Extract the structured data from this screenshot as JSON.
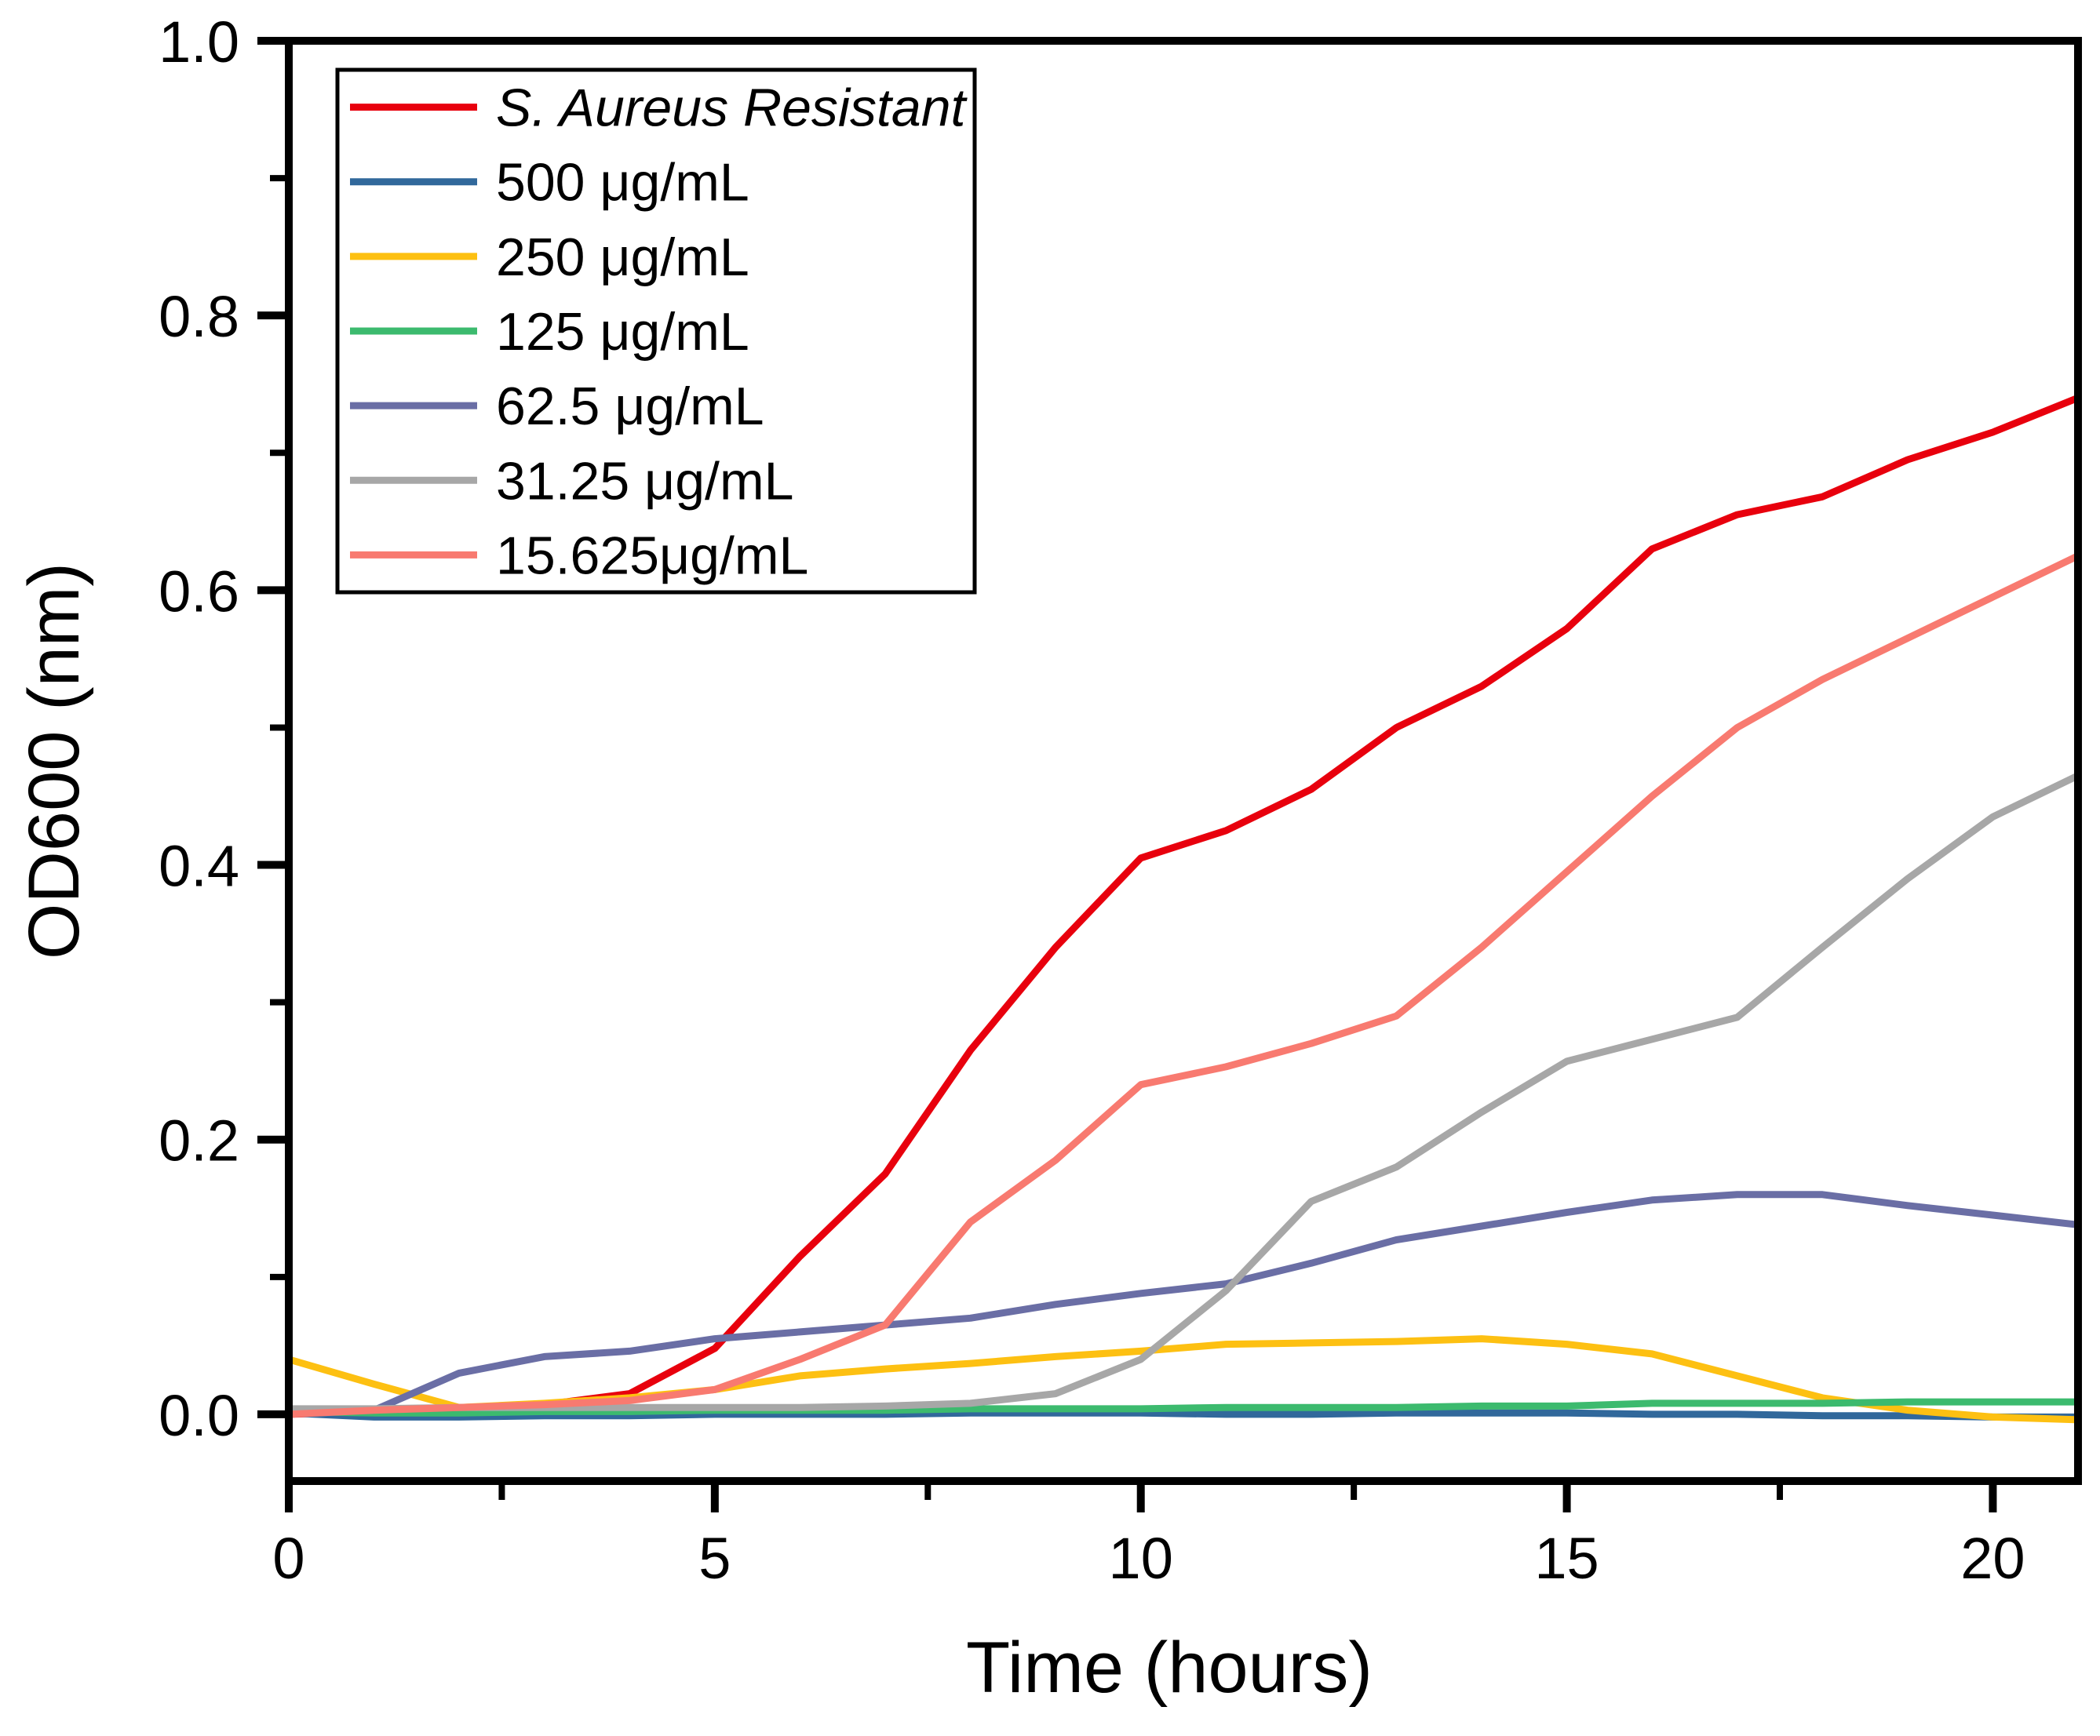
{
  "figure": {
    "background": "#ffffff",
    "text_color": "#000000",
    "axis_color": "#000000"
  },
  "chart_data": {
    "type": "line",
    "title": "",
    "xlabel": "Time (hours)",
    "ylabel": "OD600 (nm)",
    "xlim": [
      0,
      21
    ],
    "ylim": [
      -0.0486,
      1.0
    ],
    "grid": false,
    "legend_position": "upper-left-inside",
    "x_ticks_major": [
      0,
      5,
      10,
      15,
      20
    ],
    "x_tick_labels": [
      "0",
      "5",
      "10",
      "15",
      "20"
    ],
    "x_ticks_minor": [
      2.5,
      7.5,
      12.5,
      17.5
    ],
    "y_ticks_major": [
      0.0,
      0.2,
      0.4,
      0.6,
      0.8,
      1.0
    ],
    "y_tick_labels": [
      "0.0",
      "0.2",
      "0.4",
      "0.6",
      "0.8",
      "1.0"
    ],
    "y_ticks_minor": [
      0.1,
      0.3,
      0.5,
      0.7,
      0.9
    ],
    "x": [
      0,
      1,
      2,
      3,
      4,
      5,
      6,
      7,
      8,
      9,
      10,
      11,
      12,
      13,
      14,
      15,
      16,
      17,
      18,
      19,
      20,
      21
    ],
    "series": [
      {
        "name": "S. Aureus Resistant",
        "color": "#e8000d",
        "italic": true,
        "values": [
          0.0,
          0.002,
          0.004,
          0.007,
          0.015,
          0.048,
          0.115,
          0.175,
          0.265,
          0.34,
          0.405,
          0.425,
          0.455,
          0.5,
          0.53,
          0.572,
          0.63,
          0.655,
          0.668,
          0.695,
          0.715,
          0.74
        ]
      },
      {
        "name": "500 μg/mL",
        "color": "#31689b",
        "italic": false,
        "values": [
          0.001,
          -0.002,
          -0.002,
          -0.001,
          -0.001,
          0.0,
          0.0,
          0.0,
          0.001,
          0.001,
          0.001,
          0.0,
          0.0,
          0.001,
          0.001,
          0.001,
          0.0,
          0.0,
          -0.001,
          -0.001,
          -0.002,
          -0.002
        ]
      },
      {
        "name": "250 μg/mL",
        "color": "#fdc012",
        "italic": false,
        "values": [
          0.04,
          0.022,
          0.005,
          0.008,
          0.012,
          0.018,
          0.028,
          0.033,
          0.037,
          0.042,
          0.046,
          0.051,
          0.052,
          0.053,
          0.055,
          0.051,
          0.044,
          0.028,
          0.012,
          0.003,
          -0.002,
          -0.004
        ]
      },
      {
        "name": "125 μg/mL",
        "color": "#3cba6e",
        "italic": false,
        "values": [
          0.002,
          0.001,
          0.001,
          0.002,
          0.002,
          0.003,
          0.003,
          0.003,
          0.004,
          0.004,
          0.004,
          0.005,
          0.005,
          0.005,
          0.006,
          0.006,
          0.008,
          0.008,
          0.008,
          0.009,
          0.009,
          0.009
        ]
      },
      {
        "name": "62.5 μg/mL",
        "color": "#6a6ea5",
        "italic": false,
        "values": [
          0.0,
          0.003,
          0.03,
          0.042,
          0.046,
          0.055,
          0.06,
          0.065,
          0.07,
          0.08,
          0.088,
          0.095,
          0.11,
          0.127,
          0.137,
          0.147,
          0.156,
          0.16,
          0.16,
          0.152,
          0.145,
          0.138
        ]
      },
      {
        "name": "31.25 μg/mL",
        "color": "#a7a7a7",
        "italic": false,
        "values": [
          0.004,
          0.004,
          0.005,
          0.005,
          0.005,
          0.005,
          0.005,
          0.006,
          0.008,
          0.015,
          0.04,
          0.09,
          0.155,
          0.18,
          0.22,
          0.257,
          0.273,
          0.289,
          0.34,
          0.39,
          0.435,
          0.465
        ]
      },
      {
        "name": "15.625μg/mL",
        "color": "#f87a70",
        "italic": false,
        "values": [
          0.0,
          0.003,
          0.005,
          0.007,
          0.01,
          0.018,
          0.04,
          0.065,
          0.14,
          0.185,
          0.24,
          0.253,
          0.27,
          0.29,
          0.34,
          0.395,
          0.45,
          0.5,
          0.535,
          0.565,
          0.595,
          0.625
        ]
      }
    ]
  }
}
